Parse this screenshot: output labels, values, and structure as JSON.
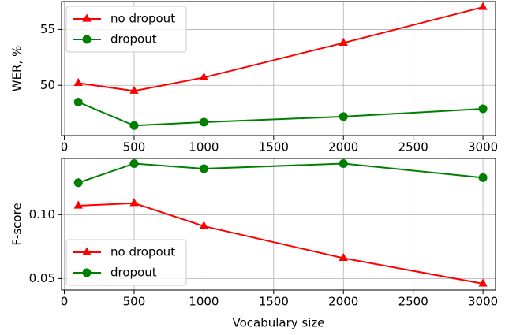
{
  "chart_data": [
    {
      "type": "line",
      "ylabel": "WER, %",
      "x": [
        100,
        500,
        1000,
        2000,
        3000
      ],
      "series": [
        {
          "name": "no dropout",
          "color": "#ff0000",
          "marker": "triangle",
          "values": [
            50.2,
            49.5,
            50.7,
            53.8,
            57.0
          ]
        },
        {
          "name": "dropout",
          "color": "#008000",
          "marker": "circle",
          "values": [
            48.5,
            46.4,
            46.7,
            47.2,
            47.9
          ]
        }
      ],
      "xlim": [
        -20,
        3090
      ],
      "xticks": [
        0,
        500,
        1000,
        1500,
        2000,
        2500,
        3000
      ],
      "ylim": [
        45.5,
        57.5
      ],
      "yticks": [
        50,
        55
      ],
      "grid": true,
      "legend": "upper left"
    },
    {
      "type": "line",
      "ylabel": "F-score",
      "xlabel": "Vocabulary size",
      "x": [
        100,
        500,
        1000,
        2000,
        3000
      ],
      "series": [
        {
          "name": "no dropout",
          "color": "#ff0000",
          "marker": "triangle",
          "values": [
            0.107,
            0.109,
            0.091,
            0.066,
            0.046
          ]
        },
        {
          "name": "dropout",
          "color": "#008000",
          "marker": "circle",
          "values": [
            0.125,
            0.14,
            0.136,
            0.14,
            0.129
          ]
        }
      ],
      "xlim": [
        -20,
        3090
      ],
      "xticks": [
        0,
        500,
        1000,
        1500,
        2000,
        2500,
        3000
      ],
      "ylim": [
        0.041,
        0.144
      ],
      "yticks": [
        {
          "value": 0.1,
          "label": "0.10"
        },
        {
          "value": 0.05,
          "label": "0.05"
        }
      ],
      "grid": true,
      "legend": "lower left"
    }
  ]
}
